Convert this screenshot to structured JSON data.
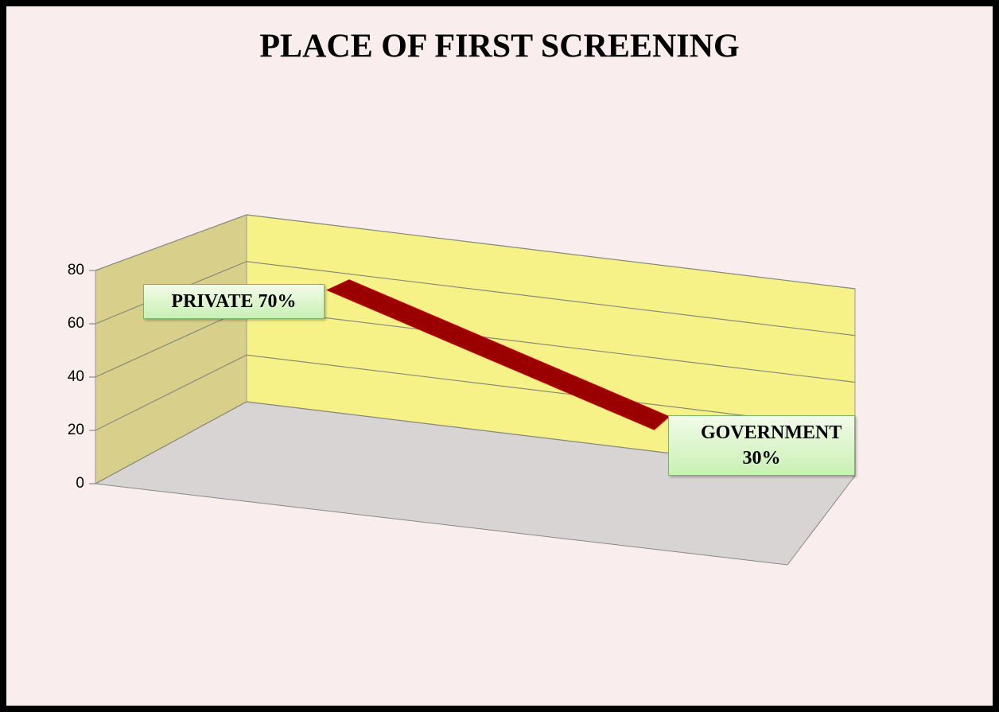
{
  "chart_data": {
    "type": "line3d",
    "title": "PLACE OF FIRST SCREENING",
    "values": [
      70,
      30
    ],
    "value_labels": [
      "PRIVATE 70%",
      "GOVERNMENT 30%"
    ],
    "color": "#9b0000",
    "ylim": [
      0,
      80
    ],
    "yticks": [
      0,
      20,
      40,
      60,
      80
    ],
    "grid": true
  }
}
